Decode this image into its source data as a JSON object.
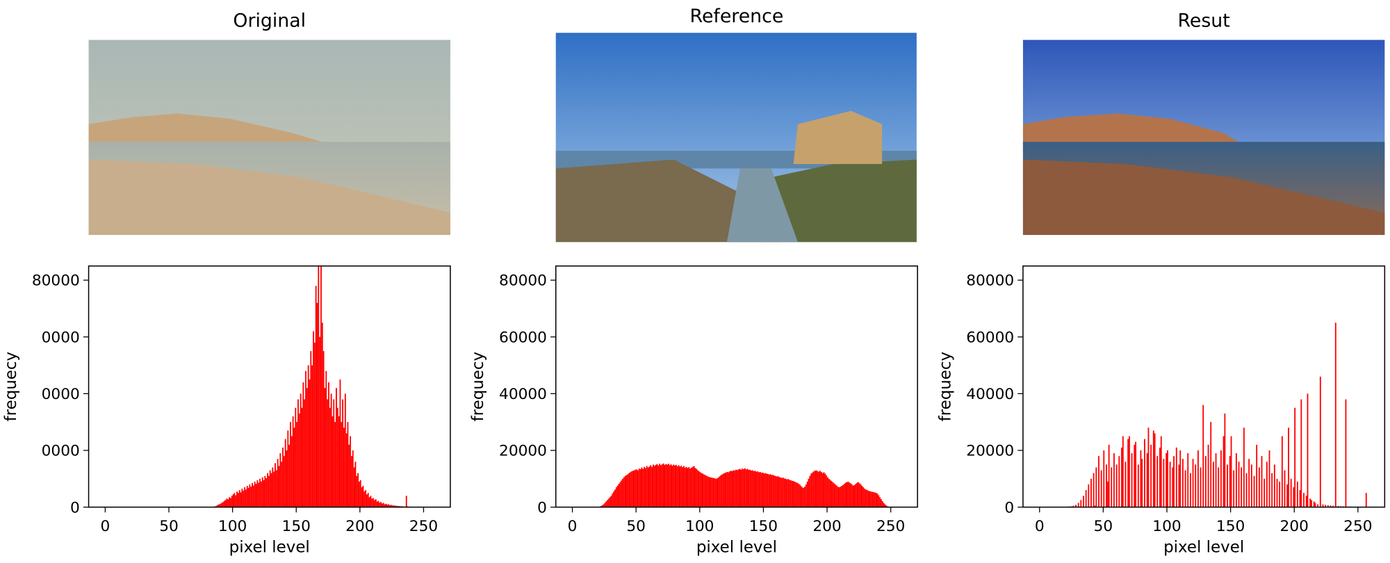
{
  "chart_data": [
    {
      "type": "histogram",
      "title": "Original",
      "xlabel": "pixel level",
      "ylabel": "frequecy",
      "color": "#ff0000",
      "xlim": [
        -13,
        271
      ],
      "ylim": [
        0,
        85000
      ],
      "xticks": [
        0,
        50,
        100,
        150,
        200,
        250
      ],
      "yticks": [
        0,
        {
          "value": 20000,
          "label": "0000"
        },
        {
          "value": 40000,
          "label": "0000"
        },
        {
          "value": 60000,
          "label": "0000"
        },
        80000
      ],
      "bins": [
        85,
        86,
        87,
        88,
        89,
        90,
        91,
        92,
        93,
        94,
        95,
        96,
        97,
        98,
        99,
        100,
        101,
        102,
        103,
        104,
        105,
        106,
        107,
        108,
        109,
        110,
        111,
        112,
        113,
        114,
        115,
        116,
        117,
        118,
        119,
        120,
        121,
        122,
        123,
        124,
        125,
        126,
        127,
        128,
        129,
        130,
        131,
        132,
        133,
        134,
        135,
        136,
        137,
        138,
        139,
        140,
        141,
        142,
        143,
        144,
        145,
        146,
        147,
        148,
        149,
        150,
        151,
        152,
        153,
        154,
        155,
        156,
        157,
        158,
        159,
        160,
        161,
        162,
        163,
        164,
        165,
        166,
        167,
        168,
        169,
        170,
        171,
        172,
        173,
        174,
        175,
        176,
        177,
        178,
        179,
        180,
        181,
        182,
        183,
        184,
        185,
        186,
        187,
        188,
        189,
        190,
        191,
        192,
        193,
        194,
        195,
        196,
        197,
        198,
        199,
        200,
        201,
        202,
        203,
        204,
        205,
        206,
        207,
        208,
        209,
        210,
        211,
        212,
        213,
        214,
        215,
        216,
        217,
        218,
        219,
        220,
        221,
        222,
        223,
        224,
        225,
        226,
        227,
        228,
        229,
        230,
        231,
        232,
        233,
        234,
        235,
        236,
        237,
        238
      ],
      "values": [
        200,
        300,
        500,
        800,
        1000,
        1200,
        1500,
        1800,
        2200,
        2500,
        3000,
        2800,
        3500,
        3200,
        4000,
        4500,
        5000,
        4200,
        5500,
        5000,
        6000,
        5200,
        6500,
        5800,
        7000,
        6200,
        7500,
        6800,
        8000,
        7200,
        8500,
        7600,
        9000,
        8200,
        9500,
        8600,
        10000,
        9000,
        10500,
        9500,
        11000,
        10200,
        12000,
        11000,
        13000,
        12000,
        14000,
        12500,
        15500,
        13000,
        17000,
        14500,
        19000,
        16000,
        21000,
        18000,
        24000,
        20000,
        27000,
        22000,
        30000,
        25000,
        32000,
        28000,
        35000,
        30000,
        38000,
        33000,
        40000,
        35000,
        44000,
        38000,
        48000,
        42000,
        50000,
        45000,
        55000,
        50000,
        62000,
        58000,
        78000,
        72000,
        85000,
        60000,
        85000,
        65000,
        55000,
        42000,
        48000,
        38000,
        44000,
        35000,
        40000,
        32000,
        38000,
        30000,
        42000,
        35000,
        32000,
        45000,
        30000,
        38000,
        28000,
        40000,
        26000,
        30000,
        22000,
        25000,
        18000,
        20000,
        14000,
        16000,
        11000,
        12000,
        9000,
        9500,
        7000,
        7500,
        5500,
        6000,
        4500,
        5000,
        3500,
        4000,
        3000,
        3200,
        2500,
        2800,
        2000,
        2200,
        1600,
        1800,
        1300,
        1500,
        1000,
        1200,
        900,
        1000,
        700,
        800,
        600,
        600,
        500,
        500,
        400,
        400,
        300,
        300,
        300,
        200,
        200,
        4000,
        300
      ]
    },
    {
      "type": "histogram",
      "title": "Reference",
      "xlabel": "pixel level",
      "ylabel": "frequecy",
      "color": "#ff0000",
      "xlim": [
        -13,
        271
      ],
      "ylim": [
        0,
        85000
      ],
      "xticks": [
        0,
        50,
        100,
        150,
        200,
        250
      ],
      "yticks": [
        0,
        20000,
        40000,
        60000,
        80000
      ],
      "bins": [
        20,
        21,
        22,
        23,
        24,
        25,
        26,
        27,
        28,
        29,
        30,
        31,
        32,
        33,
        34,
        35,
        36,
        37,
        38,
        39,
        40,
        41,
        42,
        43,
        44,
        45,
        46,
        47,
        48,
        49,
        50,
        51,
        52,
        53,
        54,
        55,
        56,
        57,
        58,
        59,
        60,
        61,
        62,
        63,
        64,
        65,
        66,
        67,
        68,
        69,
        70,
        71,
        72,
        73,
        74,
        75,
        76,
        77,
        78,
        79,
        80,
        81,
        82,
        83,
        84,
        85,
        86,
        87,
        88,
        89,
        90,
        91,
        92,
        93,
        94,
        95,
        96,
        97,
        98,
        99,
        100,
        101,
        102,
        103,
        104,
        105,
        106,
        107,
        108,
        109,
        110,
        111,
        112,
        113,
        114,
        115,
        116,
        117,
        118,
        119,
        120,
        121,
        122,
        123,
        124,
        125,
        126,
        127,
        128,
        129,
        130,
        131,
        132,
        133,
        134,
        135,
        136,
        137,
        138,
        139,
        140,
        141,
        142,
        143,
        144,
        145,
        146,
        147,
        148,
        149,
        150,
        151,
        152,
        153,
        154,
        155,
        156,
        157,
        158,
        159,
        160,
        161,
        162,
        163,
        164,
        165,
        166,
        167,
        168,
        169,
        170,
        171,
        172,
        173,
        174,
        175,
        176,
        177,
        178,
        179,
        180,
        181,
        182,
        183,
        184,
        185,
        186,
        187,
        188,
        189,
        190,
        191,
        192,
        193,
        194,
        195,
        196,
        197,
        198,
        199,
        200,
        201,
        202,
        203,
        204,
        205,
        206,
        207,
        208,
        209,
        210,
        211,
        212,
        213,
        214,
        215,
        216,
        217,
        218,
        219,
        220,
        221,
        222,
        223,
        224,
        225,
        226,
        227,
        228,
        229,
        230,
        231,
        232,
        233,
        234,
        235,
        236,
        237,
        238,
        239,
        240,
        241,
        242,
        243,
        244,
        245,
        246,
        247,
        248,
        249
      ],
      "values": [
        100,
        200,
        400,
        700,
        1000,
        1500,
        2000,
        2500,
        3000,
        3500,
        4000,
        4800,
        5500,
        6200,
        7000,
        7600,
        8200,
        8800,
        9400,
        10000,
        10500,
        11000,
        11300,
        11600,
        12000,
        12300,
        12600,
        12800,
        13000,
        13200,
        13300,
        13000,
        13600,
        13400,
        14000,
        13500,
        14200,
        13800,
        14500,
        14000,
        14300,
        14800,
        14200,
        15000,
        14600,
        14900,
        15200,
        14700,
        15300,
        14800,
        15100,
        15400,
        14900,
        15200,
        15000,
        15300,
        14800,
        15100,
        14600,
        15000,
        14700,
        14900,
        14400,
        14800,
        14300,
        14600,
        14100,
        14500,
        13900,
        14200,
        13800,
        14100,
        13600,
        13900,
        14200,
        14500,
        13800,
        13500,
        13000,
        12600,
        12300,
        12000,
        11800,
        11500,
        11300,
        11000,
        10800,
        10600,
        10500,
        10400,
        10300,
        10200,
        10000,
        10100,
        10400,
        10800,
        11200,
        11500,
        11800,
        12000,
        12200,
        12400,
        12300,
        12600,
        12800,
        12700,
        13000,
        12900,
        13200,
        13100,
        13300,
        13500,
        13200,
        13600,
        13400,
        13700,
        13300,
        13500,
        13100,
        13200,
        12900,
        13000,
        12700,
        12800,
        12500,
        12600,
        12300,
        12400,
        12100,
        12200,
        11900,
        12000,
        11800,
        11700,
        11500,
        11600,
        11300,
        11400,
        11100,
        11000,
        10800,
        10900,
        10600,
        10500,
        10300,
        10400,
        10100,
        10000,
        9800,
        9900,
        9600,
        9500,
        9300,
        9200,
        9000,
        8800,
        8600,
        8300,
        8000,
        7500,
        7000,
        6800,
        7200,
        8000,
        9000,
        10000,
        11000,
        11800,
        12200,
        12600,
        12800,
        13000,
        12700,
        12500,
        12800,
        12400,
        12000,
        12300,
        11800,
        11200,
        10500,
        10000,
        9600,
        9200,
        8800,
        8400,
        8000,
        7600,
        7200,
        7000,
        7200,
        7500,
        7800,
        8200,
        8600,
        8800,
        9000,
        8700,
        8400,
        8000,
        7600,
        7800,
        8200,
        8600,
        8800,
        8400,
        8000,
        7500,
        7000,
        6500,
        6200,
        6000,
        5800,
        5600,
        5500,
        5400,
        5300,
        5200,
        5000,
        4800,
        4200,
        3500,
        2800,
        2100,
        1500,
        1000,
        600,
        300,
        100
      ]
    },
    {
      "type": "histogram",
      "title": "Resut",
      "xlabel": "pixel level",
      "ylabel": "frequecy",
      "color": "#ff0000",
      "xlim": [
        -13,
        271
      ],
      "ylim": [
        0,
        85000
      ],
      "xticks": [
        0,
        50,
        100,
        150,
        200,
        250
      ],
      "yticks": [
        0,
        20000,
        40000,
        60000,
        80000
      ],
      "bins": [
        20,
        21,
        22,
        23,
        24,
        25,
        26,
        27,
        28,
        29,
        30,
        31,
        32,
        33,
        34,
        35,
        36,
        37,
        38,
        39,
        40,
        41,
        42,
        43,
        44,
        45,
        46,
        47,
        48,
        49,
        50,
        51,
        52,
        53,
        54,
        55,
        56,
        57,
        58,
        59,
        60,
        61,
        62,
        63,
        64,
        65,
        66,
        67,
        68,
        69,
        70,
        71,
        72,
        73,
        74,
        75,
        76,
        77,
        78,
        79,
        80,
        81,
        82,
        83,
        84,
        85,
        86,
        87,
        88,
        89,
        90,
        91,
        92,
        93,
        94,
        95,
        96,
        97,
        98,
        99,
        100,
        101,
        102,
        103,
        104,
        105,
        106,
        107,
        108,
        109,
        110,
        111,
        112,
        113,
        114,
        115,
        116,
        117,
        118,
        119,
        120,
        121,
        122,
        123,
        124,
        125,
        126,
        127,
        128,
        129,
        130,
        131,
        132,
        133,
        134,
        135,
        136,
        137,
        138,
        139,
        140,
        141,
        142,
        143,
        144,
        145,
        146,
        147,
        148,
        149,
        150,
        151,
        152,
        153,
        154,
        155,
        156,
        157,
        158,
        159,
        160,
        161,
        162,
        163,
        164,
        165,
        166,
        167,
        168,
        169,
        170,
        171,
        172,
        173,
        174,
        175,
        176,
        177,
        178,
        179,
        180,
        181,
        182,
        183,
        184,
        185,
        186,
        187,
        188,
        189,
        190,
        191,
        192,
        193,
        194,
        195,
        196,
        197,
        198,
        199,
        200,
        201,
        202,
        203,
        204,
        205,
        206,
        207,
        208,
        209,
        210,
        211,
        212,
        213,
        214,
        215,
        216,
        217,
        218,
        219,
        220,
        221,
        222,
        223,
        224,
        225,
        226,
        227,
        228,
        229,
        230,
        231,
        232,
        233,
        234,
        235,
        236,
        237,
        238,
        239,
        240,
        241,
        242,
        243,
        244,
        245,
        246,
        247,
        248,
        249,
        250,
        251,
        252,
        253,
        254,
        255,
        256,
        257
      ],
      "values": [
        100,
        0,
        200,
        0,
        300,
        0,
        500,
        0,
        800,
        0,
        1500,
        0,
        2500,
        0,
        4000,
        0,
        6000,
        0,
        8000,
        0,
        10000,
        0,
        12000,
        500,
        14000,
        0,
        18000,
        0,
        13000,
        0,
        20000,
        0,
        15000,
        9000,
        22000,
        0,
        14000,
        0,
        19000,
        0,
        15000,
        0,
        18000,
        0,
        21000,
        25000,
        0,
        16000,
        0,
        24000,
        25000,
        0,
        19000,
        0,
        22000,
        23000,
        0,
        15000,
        0,
        20000,
        17000,
        0,
        24000,
        0,
        19000,
        28000,
        0,
        22000,
        0,
        27000,
        26000,
        0,
        18000,
        0,
        21000,
        25000,
        0,
        17000,
        0,
        19000,
        20000,
        0,
        16000,
        0,
        14000,
        18000,
        0,
        21000,
        0,
        15000,
        20000,
        0,
        17000,
        0,
        13000,
        0,
        19000,
        0,
        12000,
        0,
        17000,
        0,
        15000,
        0,
        20000,
        0,
        14000,
        0,
        36000,
        0,
        18000,
        0,
        22000,
        0,
        30000,
        0,
        16000,
        0,
        19000,
        0,
        14000,
        0,
        20000,
        0,
        25000,
        33000,
        0,
        15000,
        0,
        18000,
        25000,
        0,
        13000,
        0,
        19000,
        0,
        16000,
        0,
        14000,
        0,
        28000,
        0,
        12000,
        0,
        17000,
        0,
        15000,
        0,
        11000,
        0,
        22000,
        0,
        14000,
        0,
        18000,
        0,
        10000,
        0,
        16000,
        0,
        20000,
        0,
        12000,
        0,
        15000,
        0,
        10000,
        0,
        9000,
        0,
        25000,
        0,
        13000,
        0,
        8000,
        28000,
        0,
        10000,
        0,
        7000,
        35000,
        0,
        9000,
        0,
        6000,
        38000,
        0,
        5000,
        0,
        4000,
        40000,
        0,
        3000,
        2500,
        0,
        2000,
        1500,
        0,
        1000,
        0,
        46000,
        0,
        1000,
        0,
        800,
        0,
        700,
        0,
        600,
        0,
        500,
        0,
        65000,
        0,
        400,
        0,
        300,
        0,
        300,
        0,
        38000,
        0,
        200,
        0,
        200,
        0,
        100,
        0,
        100,
        0,
        100,
        0,
        0,
        0,
        0,
        0,
        5000
      ]
    }
  ]
}
